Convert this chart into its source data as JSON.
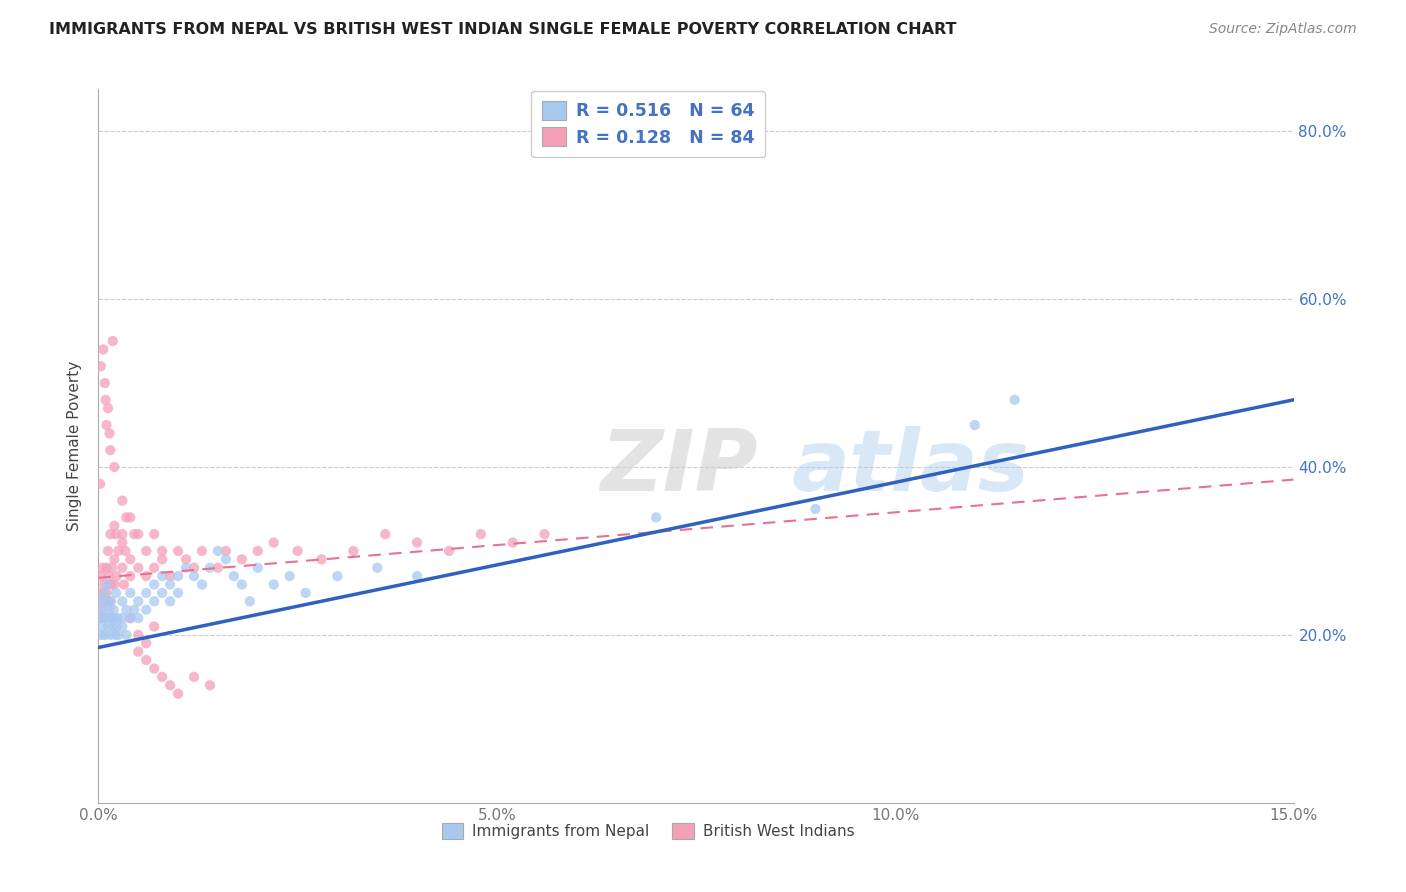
{
  "title": "IMMIGRANTS FROM NEPAL VS BRITISH WEST INDIAN SINGLE FEMALE POVERTY CORRELATION CHART",
  "source": "Source: ZipAtlas.com",
  "ylabel": "Single Female Poverty",
  "xlim": [
    0.0,
    0.15
  ],
  "ylim": [
    0.0,
    0.85
  ],
  "xtick_vals": [
    0.0,
    0.05,
    0.1,
    0.15
  ],
  "xtick_labels": [
    "0.0%",
    "5.0%",
    "10.0%",
    "15.0%"
  ],
  "ytick_vals": [
    0.2,
    0.4,
    0.6,
    0.8
  ],
  "ytick_labels": [
    "20.0%",
    "40.0%",
    "60.0%",
    "80.0%"
  ],
  "nepal_R": 0.516,
  "nepal_N": 64,
  "bwi_R": 0.128,
  "bwi_N": 84,
  "nepal_color": "#a8c8f0",
  "bwi_color": "#f4a0b8",
  "nepal_line_color": "#3060c0",
  "bwi_line_color": "#e87090",
  "legend_color": "#4472c4",
  "watermark_zip": "ZIP",
  "watermark_atlas": "atlas",
  "nepal_scatter_x": [
    0.0002,
    0.0003,
    0.0004,
    0.0005,
    0.0006,
    0.0007,
    0.0008,
    0.0009,
    0.001,
    0.0011,
    0.0012,
    0.0013,
    0.0014,
    0.0015,
    0.0016,
    0.0017,
    0.0018,
    0.0019,
    0.002,
    0.0021,
    0.0022,
    0.0023,
    0.0024,
    0.0025,
    0.003,
    0.003,
    0.003,
    0.0035,
    0.0035,
    0.004,
    0.004,
    0.0045,
    0.005,
    0.005,
    0.006,
    0.006,
    0.007,
    0.007,
    0.008,
    0.008,
    0.009,
    0.009,
    0.01,
    0.01,
    0.011,
    0.012,
    0.013,
    0.014,
    0.015,
    0.016,
    0.017,
    0.018,
    0.019,
    0.02,
    0.022,
    0.024,
    0.026,
    0.03,
    0.035,
    0.04,
    0.07,
    0.09,
    0.11,
    0.115
  ],
  "nepal_scatter_y": [
    0.22,
    0.2,
    0.24,
    0.21,
    0.23,
    0.25,
    0.2,
    0.22,
    0.24,
    0.26,
    0.21,
    0.23,
    0.22,
    0.2,
    0.24,
    0.22,
    0.21,
    0.23,
    0.22,
    0.2,
    0.25,
    0.21,
    0.22,
    0.2,
    0.24,
    0.22,
    0.21,
    0.23,
    0.2,
    0.25,
    0.22,
    0.23,
    0.24,
    0.22,
    0.25,
    0.23,
    0.26,
    0.24,
    0.27,
    0.25,
    0.26,
    0.24,
    0.27,
    0.25,
    0.28,
    0.27,
    0.26,
    0.28,
    0.3,
    0.29,
    0.27,
    0.26,
    0.24,
    0.28,
    0.26,
    0.27,
    0.25,
    0.27,
    0.28,
    0.27,
    0.34,
    0.35,
    0.45,
    0.48
  ],
  "bwi_scatter_x": [
    0.0001,
    0.0002,
    0.0003,
    0.0004,
    0.0005,
    0.0006,
    0.0007,
    0.0008,
    0.001,
    0.001,
    0.0012,
    0.0013,
    0.0014,
    0.0015,
    0.0016,
    0.0017,
    0.0018,
    0.002,
    0.002,
    0.0022,
    0.0023,
    0.0025,
    0.003,
    0.003,
    0.0032,
    0.0034,
    0.0035,
    0.004,
    0.004,
    0.0045,
    0.005,
    0.005,
    0.006,
    0.006,
    0.007,
    0.007,
    0.008,
    0.008,
    0.009,
    0.01,
    0.011,
    0.012,
    0.013,
    0.015,
    0.016,
    0.018,
    0.02,
    0.022,
    0.025,
    0.028,
    0.032,
    0.036,
    0.04,
    0.044,
    0.048,
    0.052,
    0.056,
    0.001,
    0.0015,
    0.002,
    0.0008,
    0.0012,
    0.0018,
    0.0006,
    0.0003,
    0.0009,
    0.0014,
    0.0002,
    0.003,
    0.004,
    0.005,
    0.006,
    0.007,
    0.008,
    0.009,
    0.01,
    0.012,
    0.014,
    0.002,
    0.003,
    0.004,
    0.005,
    0.006,
    0.007
  ],
  "bwi_scatter_y": [
    0.25,
    0.23,
    0.27,
    0.22,
    0.28,
    0.24,
    0.26,
    0.22,
    0.28,
    0.25,
    0.3,
    0.27,
    0.24,
    0.32,
    0.26,
    0.28,
    0.22,
    0.29,
    0.26,
    0.32,
    0.27,
    0.3,
    0.28,
    0.32,
    0.26,
    0.3,
    0.34,
    0.29,
    0.27,
    0.32,
    0.28,
    0.32,
    0.27,
    0.3,
    0.28,
    0.32,
    0.29,
    0.3,
    0.27,
    0.3,
    0.29,
    0.28,
    0.3,
    0.28,
    0.3,
    0.29,
    0.3,
    0.31,
    0.3,
    0.29,
    0.3,
    0.32,
    0.31,
    0.3,
    0.32,
    0.31,
    0.32,
    0.45,
    0.42,
    0.4,
    0.5,
    0.47,
    0.55,
    0.54,
    0.52,
    0.48,
    0.44,
    0.38,
    0.36,
    0.34,
    0.18,
    0.17,
    0.16,
    0.15,
    0.14,
    0.13,
    0.15,
    0.14,
    0.33,
    0.31,
    0.22,
    0.2,
    0.19,
    0.21
  ]
}
